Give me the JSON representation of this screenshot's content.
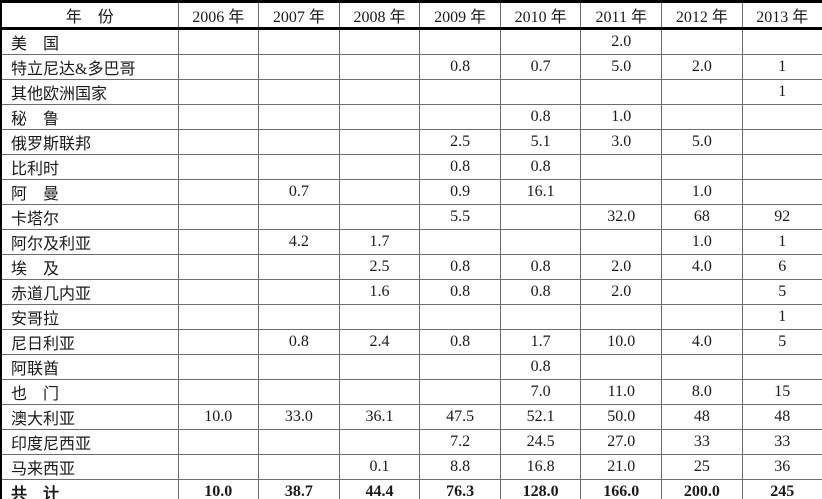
{
  "table": {
    "header": {
      "label": "年　份",
      "years": [
        "2006 年",
        "2007 年",
        "2008 年",
        "2009 年",
        "2010 年",
        "2011 年",
        "2012 年",
        "2013 年"
      ]
    },
    "rows": [
      {
        "label": "美　国",
        "values": [
          "",
          "",
          "",
          "",
          "",
          "2.0",
          "",
          ""
        ]
      },
      {
        "label": "特立尼达&多巴哥",
        "values": [
          "",
          "",
          "",
          "0.8",
          "0.7",
          "5.0",
          "2.0",
          "1"
        ]
      },
      {
        "label": "其他欧洲国家",
        "values": [
          "",
          "",
          "",
          "",
          "",
          "",
          "",
          "1"
        ]
      },
      {
        "label": "秘　鲁",
        "values": [
          "",
          "",
          "",
          "",
          "0.8",
          "1.0",
          "",
          ""
        ]
      },
      {
        "label": "俄罗斯联邦",
        "values": [
          "",
          "",
          "",
          "2.5",
          "5.1",
          "3.0",
          "5.0",
          ""
        ]
      },
      {
        "label": "比利时",
        "values": [
          "",
          "",
          "",
          "0.8",
          "0.8",
          "",
          "",
          ""
        ]
      },
      {
        "label": "阿　曼",
        "values": [
          "",
          "0.7",
          "",
          "0.9",
          "16.1",
          "",
          "1.0",
          ""
        ]
      },
      {
        "label": "卡塔尔",
        "values": [
          "",
          "",
          "",
          "5.5",
          "",
          "32.0",
          "68",
          "92"
        ]
      },
      {
        "label": "阿尔及利亚",
        "values": [
          "",
          "4.2",
          "1.7",
          "",
          "",
          "",
          "1.0",
          "1"
        ]
      },
      {
        "label": "埃　及",
        "values": [
          "",
          "",
          "2.5",
          "0.8",
          "0.8",
          "2.0",
          "4.0",
          "6"
        ]
      },
      {
        "label": "赤道几内亚",
        "values": [
          "",
          "",
          "1.6",
          "0.8",
          "0.8",
          "2.0",
          "",
          "5"
        ]
      },
      {
        "label": "安哥拉",
        "values": [
          "",
          "",
          "",
          "",
          "",
          "",
          "",
          "1"
        ]
      },
      {
        "label": "尼日利亚",
        "values": [
          "",
          "0.8",
          "2.4",
          "0.8",
          "1.7",
          "10.0",
          "4.0",
          "5"
        ]
      },
      {
        "label": "阿联酋",
        "values": [
          "",
          "",
          "",
          "",
          "0.8",
          "",
          "",
          ""
        ]
      },
      {
        "label": "也　门",
        "values": [
          "",
          "",
          "",
          "",
          "7.0",
          "11.0",
          "8.0",
          "15"
        ]
      },
      {
        "label": "澳大利亚",
        "values": [
          "10.0",
          "33.0",
          "36.1",
          "47.5",
          "52.1",
          "50.0",
          "48",
          "48"
        ]
      },
      {
        "label": "印度尼西亚",
        "values": [
          "",
          "",
          "",
          "7.2",
          "24.5",
          "27.0",
          "33",
          "33"
        ]
      },
      {
        "label": "马来西亚",
        "values": [
          "",
          "",
          "0.1",
          "8.8",
          "16.8",
          "21.0",
          "25",
          "36"
        ]
      }
    ],
    "total": {
      "label": "共　计",
      "values": [
        "10.0",
        "38.7",
        "44.4",
        "76.3",
        "128.0",
        "166.0",
        "200.0",
        "245"
      ]
    }
  },
  "colors": {
    "text": "#1a1a1a",
    "frame_border": "#000000",
    "grid_line": "#6e6e6e",
    "background": "#ffffff"
  }
}
